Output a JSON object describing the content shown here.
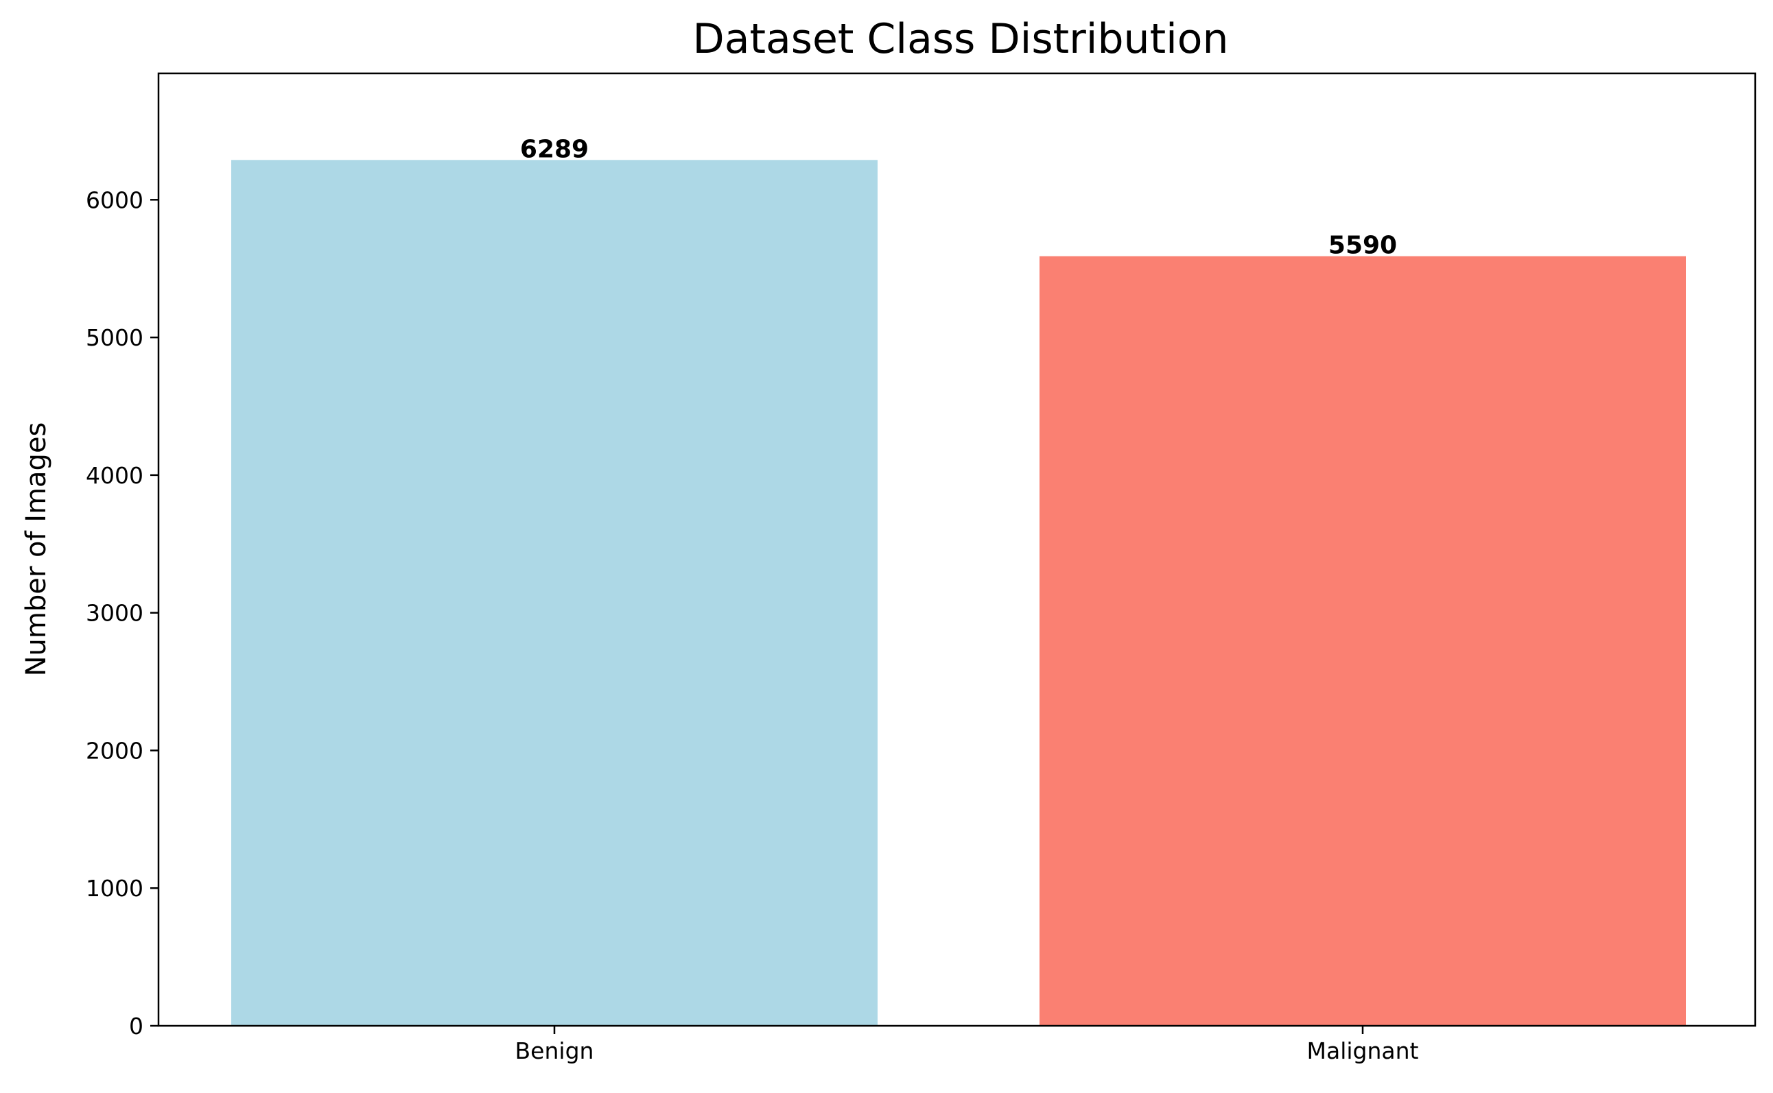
{
  "chart_data": {
    "type": "bar",
    "title": "Dataset Class Distribution",
    "xlabel": "",
    "ylabel": "Number of Images",
    "categories": [
      "Benign",
      "Malignant"
    ],
    "values": [
      6289,
      5590
    ],
    "data_labels": [
      "6289",
      "5590"
    ],
    "colors": [
      "#add8e6",
      "#fa8072"
    ],
    "ylim": [
      0,
      6918
    ],
    "yticks": [
      0,
      1000,
      2000,
      3000,
      4000,
      5000,
      6000
    ],
    "grid": false,
    "legend": "none"
  }
}
